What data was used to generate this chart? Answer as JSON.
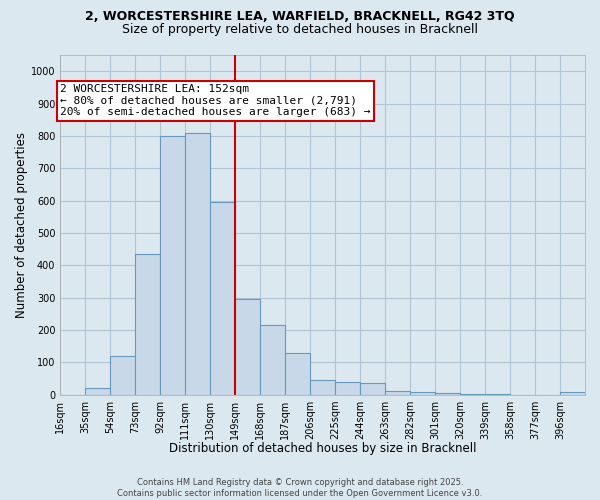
{
  "title_line1": "2, WORCESTERSHIRE LEA, WARFIELD, BRACKNELL, RG42 3TQ",
  "title_line2": "Size of property relative to detached houses in Bracknell",
  "xlabel": "Distribution of detached houses by size in Bracknell",
  "ylabel": "Number of detached properties",
  "bin_labels": [
    "16sqm",
    "35sqm",
    "54sqm",
    "73sqm",
    "92sqm",
    "111sqm",
    "130sqm",
    "149sqm",
    "168sqm",
    "187sqm",
    "206sqm",
    "225sqm",
    "244sqm",
    "263sqm",
    "282sqm",
    "301sqm",
    "320sqm",
    "339sqm",
    "358sqm",
    "377sqm",
    "396sqm"
  ],
  "bin_edges": [
    16,
    35,
    54,
    73,
    92,
    111,
    130,
    149,
    168,
    187,
    206,
    225,
    244,
    263,
    282,
    301,
    320,
    339,
    358,
    377,
    396
  ],
  "bar_heights": [
    0,
    20,
    120,
    435,
    800,
    810,
    595,
    295,
    215,
    130,
    45,
    40,
    38,
    12,
    8,
    5,
    4,
    2,
    1,
    0,
    8
  ],
  "bar_color": "#c8d8e8",
  "bar_edge_color": "#6699bb",
  "vline_x": 149,
  "vline_color": "#cc0000",
  "annotation_text": "2 WORCESTERSHIRE LEA: 152sqm\n← 80% of detached houses are smaller (2,791)\n20% of semi-detached houses are larger (683) →",
  "annotation_box_color": "#ffffff",
  "annotation_box_edge": "#cc0000",
  "ylim": [
    0,
    1050
  ],
  "yticks": [
    0,
    100,
    200,
    300,
    400,
    500,
    600,
    700,
    800,
    900,
    1000
  ],
  "footer_text": "Contains HM Land Registry data © Crown copyright and database right 2025.\nContains public sector information licensed under the Open Government Licence v3.0.",
  "bg_color": "#dce8f0",
  "plot_bg_color": "#dce8f0",
  "grid_color": "#b0c4d4",
  "title_fontsize": 9,
  "subtitle_fontsize": 9,
  "axis_label_fontsize": 8.5,
  "tick_fontsize": 7,
  "annotation_fontsize": 8,
  "footer_fontsize": 6
}
